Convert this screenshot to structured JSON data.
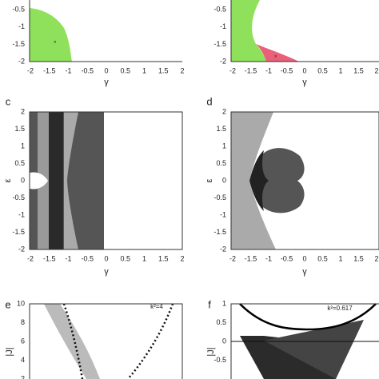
{
  "panels": [
    {
      "x_ticks": [
        "-2",
        "-1.5",
        "-1",
        "-0.5",
        "0",
        "0.5",
        "1",
        "1.5",
        "2"
      ],
      "y_ticks": [
        "-0.5",
        "-1",
        "-1.5",
        "-2"
      ],
      "x_label": "γ"
    },
    {
      "x_ticks": [
        "-2",
        "-1.5",
        "-1",
        "-0.5",
        "0",
        "0.5",
        "1",
        "1.5",
        "2"
      ],
      "y_ticks": [
        "-0.5",
        "-1",
        "-1.5",
        "-2"
      ],
      "x_label": "γ"
    },
    {
      "label": "c",
      "x_ticks": [
        "-2",
        "-1.5",
        "-1",
        "-0.5",
        "0",
        "0.5",
        "1",
        "1.5",
        "2"
      ],
      "y_ticks": [
        "2",
        "1.5",
        "1",
        "0.5",
        "0",
        "-0.5",
        "-1",
        "-1.5",
        "-2"
      ],
      "x_label": "γ",
      "y_label": "ε"
    },
    {
      "label": "d",
      "x_ticks": [
        "-2",
        "-1.5",
        "-1",
        "-0.5",
        "0",
        "0.5",
        "1",
        "1.5",
        "2"
      ],
      "y_ticks": [
        "2",
        "1.5",
        "1",
        "0.5",
        "0",
        "-0.5",
        "-1",
        "-1.5",
        "-2"
      ],
      "x_label": "γ",
      "y_label": "ε"
    },
    {
      "label": "e",
      "y_ticks": [
        "10",
        "8",
        "6",
        "4",
        "2"
      ],
      "y_label": "|J|",
      "annotation": "k²=4"
    },
    {
      "label": "f",
      "y_ticks": [
        "1",
        "0.5",
        "0",
        "-0.5"
      ],
      "y_label": "|J|",
      "annotation": "k²=0.617"
    }
  ]
}
